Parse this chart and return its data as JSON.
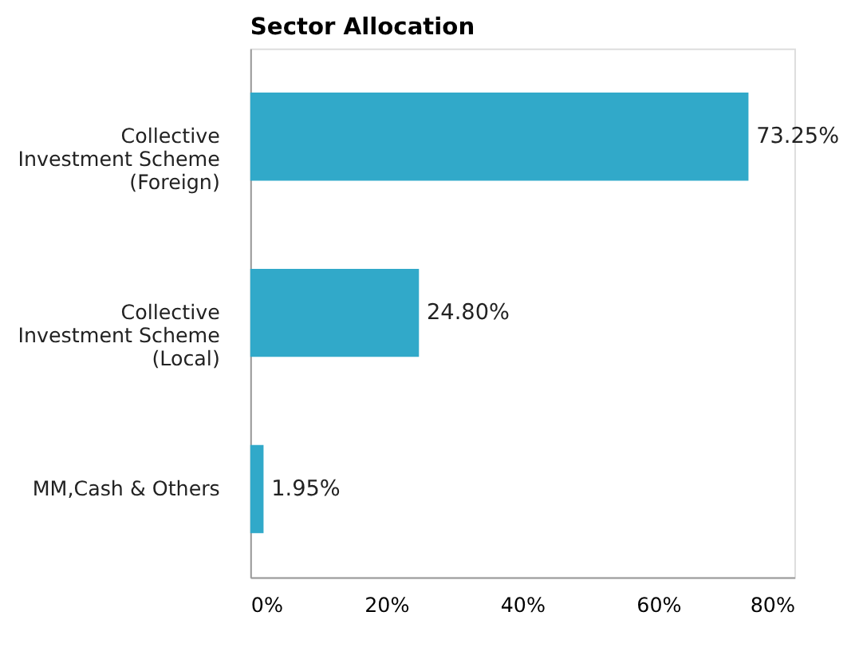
{
  "chart_data": {
    "type": "bar",
    "orientation": "horizontal",
    "title": "Sector Allocation",
    "categories": [
      "Collective Investment Scheme (Foreign)",
      "Collective Investment Scheme (Local)",
      "MM,Cash & Others"
    ],
    "values": [
      73.25,
      24.8,
      1.95
    ],
    "value_labels": [
      "73.25%",
      "24.80%",
      "1.95%"
    ],
    "color": "#31a9c9",
    "xlim": [
      0,
      80
    ],
    "xticks": [
      {
        "value": 0,
        "label": "0%"
      },
      {
        "value": 20,
        "label": "20%"
      },
      {
        "value": 40,
        "label": "40%"
      },
      {
        "value": 60,
        "label": "60%"
      },
      {
        "value": 80,
        "label": "80%"
      }
    ],
    "grid": false
  }
}
